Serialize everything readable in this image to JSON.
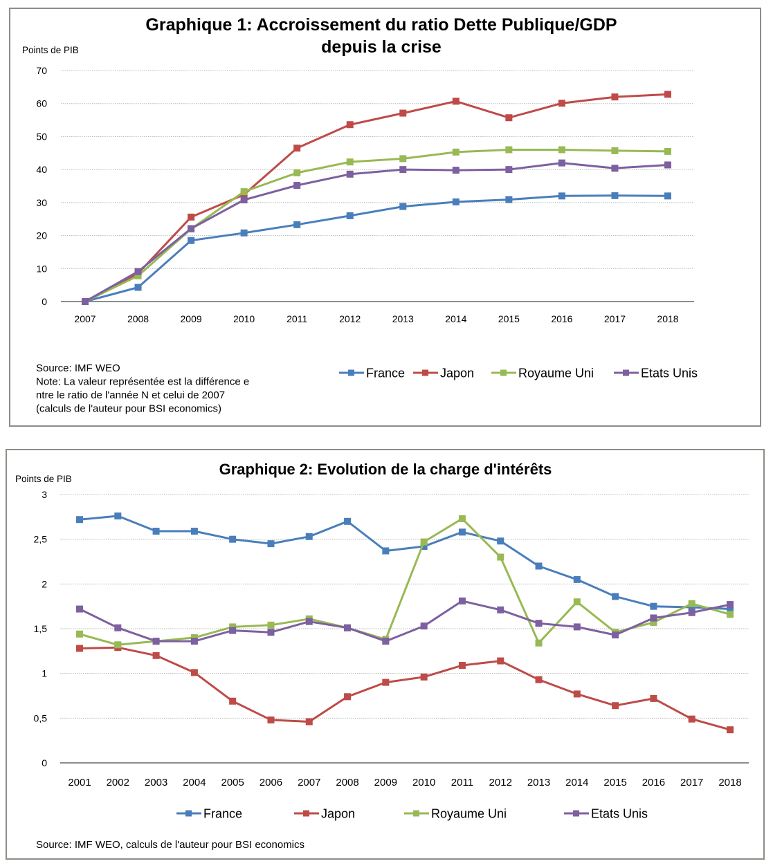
{
  "chart_data": [
    {
      "type": "line",
      "title_lines": [
        "Graphique 1: Accroissement du ratio Dette Publique/GDP",
        "depuis la crise"
      ],
      "ylabel": "Points de PIB",
      "xlabel": "",
      "x": [
        "2007",
        "2008",
        "2009",
        "2010",
        "2011",
        "2012",
        "2013",
        "2014",
        "2015",
        "2016",
        "2017",
        "2018"
      ],
      "ylim": [
        0,
        70
      ],
      "yticks": [
        0,
        10,
        20,
        30,
        40,
        50,
        60,
        70
      ],
      "ytick_labels": [
        "0",
        "10",
        "20",
        "30",
        "40",
        "50",
        "60",
        "70"
      ],
      "grid": true,
      "legend_position": "bottom-right",
      "series": [
        {
          "name": "France",
          "color": "#4a7ebb",
          "values": [
            0,
            4.3,
            18.5,
            20.8,
            23.3,
            26.0,
            28.8,
            30.2,
            30.9,
            32.0,
            32.1,
            32.0
          ]
        },
        {
          "name": "Japon",
          "color": "#be4b48",
          "values": [
            0,
            8.5,
            25.6,
            32.4,
            46.5,
            53.6,
            57.1,
            60.7,
            55.7,
            60.1,
            62.0,
            62.8
          ]
        },
        {
          "name": "Royaume Uni",
          "color": "#98b954",
          "values": [
            0,
            7.8,
            22.0,
            33.3,
            39.0,
            42.3,
            43.3,
            45.3,
            46.0,
            46.0,
            45.7,
            45.5
          ]
        },
        {
          "name": "Etats Unis",
          "color": "#7d60a0",
          "values": [
            0,
            9.1,
            22.1,
            30.8,
            35.2,
            38.6,
            40.0,
            39.8,
            40.0,
            42.0,
            40.4,
            41.4
          ]
        }
      ],
      "notes": [
        "Source: IMF WEO",
        "Note: La valeur représentée  est la différence e",
        "ntre le ratio de l'année N et celui de 2007",
        "(calculs de l'auteur pour BSI economics)"
      ]
    },
    {
      "type": "line",
      "title_lines": [
        "Graphique 2: Evolution de la charge d'intérêts"
      ],
      "ylabel": "Points de PIB",
      "xlabel": "",
      "x": [
        "2001",
        "2002",
        "2003",
        "2004",
        "2005",
        "2006",
        "2007",
        "2008",
        "2009",
        "2010",
        "2011",
        "2012",
        "2013",
        "2014",
        "2015",
        "2016",
        "2017",
        "2018"
      ],
      "ylim": [
        0,
        3
      ],
      "yticks": [
        0,
        0.5,
        1,
        1.5,
        2,
        2.5,
        3
      ],
      "ytick_labels": [
        "0",
        "0,5",
        "1",
        "1,5",
        "2",
        "2,5",
        "3"
      ],
      "grid": true,
      "legend_position": "bottom",
      "series": [
        {
          "name": "France",
          "color": "#4a7ebb",
          "values": [
            2.72,
            2.76,
            2.59,
            2.59,
            2.5,
            2.45,
            2.53,
            2.7,
            2.37,
            2.42,
            2.58,
            2.48,
            2.2,
            2.05,
            1.86,
            1.75,
            1.74,
            1.72
          ]
        },
        {
          "name": "Japon",
          "color": "#be4b48",
          "values": [
            1.28,
            1.29,
            1.2,
            1.01,
            0.69,
            0.48,
            0.46,
            0.74,
            0.9,
            0.96,
            1.09,
            1.14,
            0.93,
            0.77,
            0.64,
            0.72,
            0.49,
            0.37
          ]
        },
        {
          "name": "Royaume Uni",
          "color": "#98b954",
          "values": [
            1.44,
            1.32,
            1.36,
            1.4,
            1.52,
            1.54,
            1.61,
            1.51,
            1.38,
            2.47,
            2.73,
            2.3,
            1.34,
            1.8,
            1.46,
            1.57,
            1.78,
            1.66
          ]
        },
        {
          "name": "Etats Unis",
          "color": "#7d60a0",
          "values": [
            1.72,
            1.51,
            1.36,
            1.36,
            1.48,
            1.46,
            1.58,
            1.51,
            1.36,
            1.53,
            1.81,
            1.71,
            1.56,
            1.52,
            1.43,
            1.62,
            1.68,
            1.77
          ]
        }
      ],
      "notes": [
        "Source: IMF WEO, calculs de l'auteur pour BSI economics"
      ]
    }
  ]
}
